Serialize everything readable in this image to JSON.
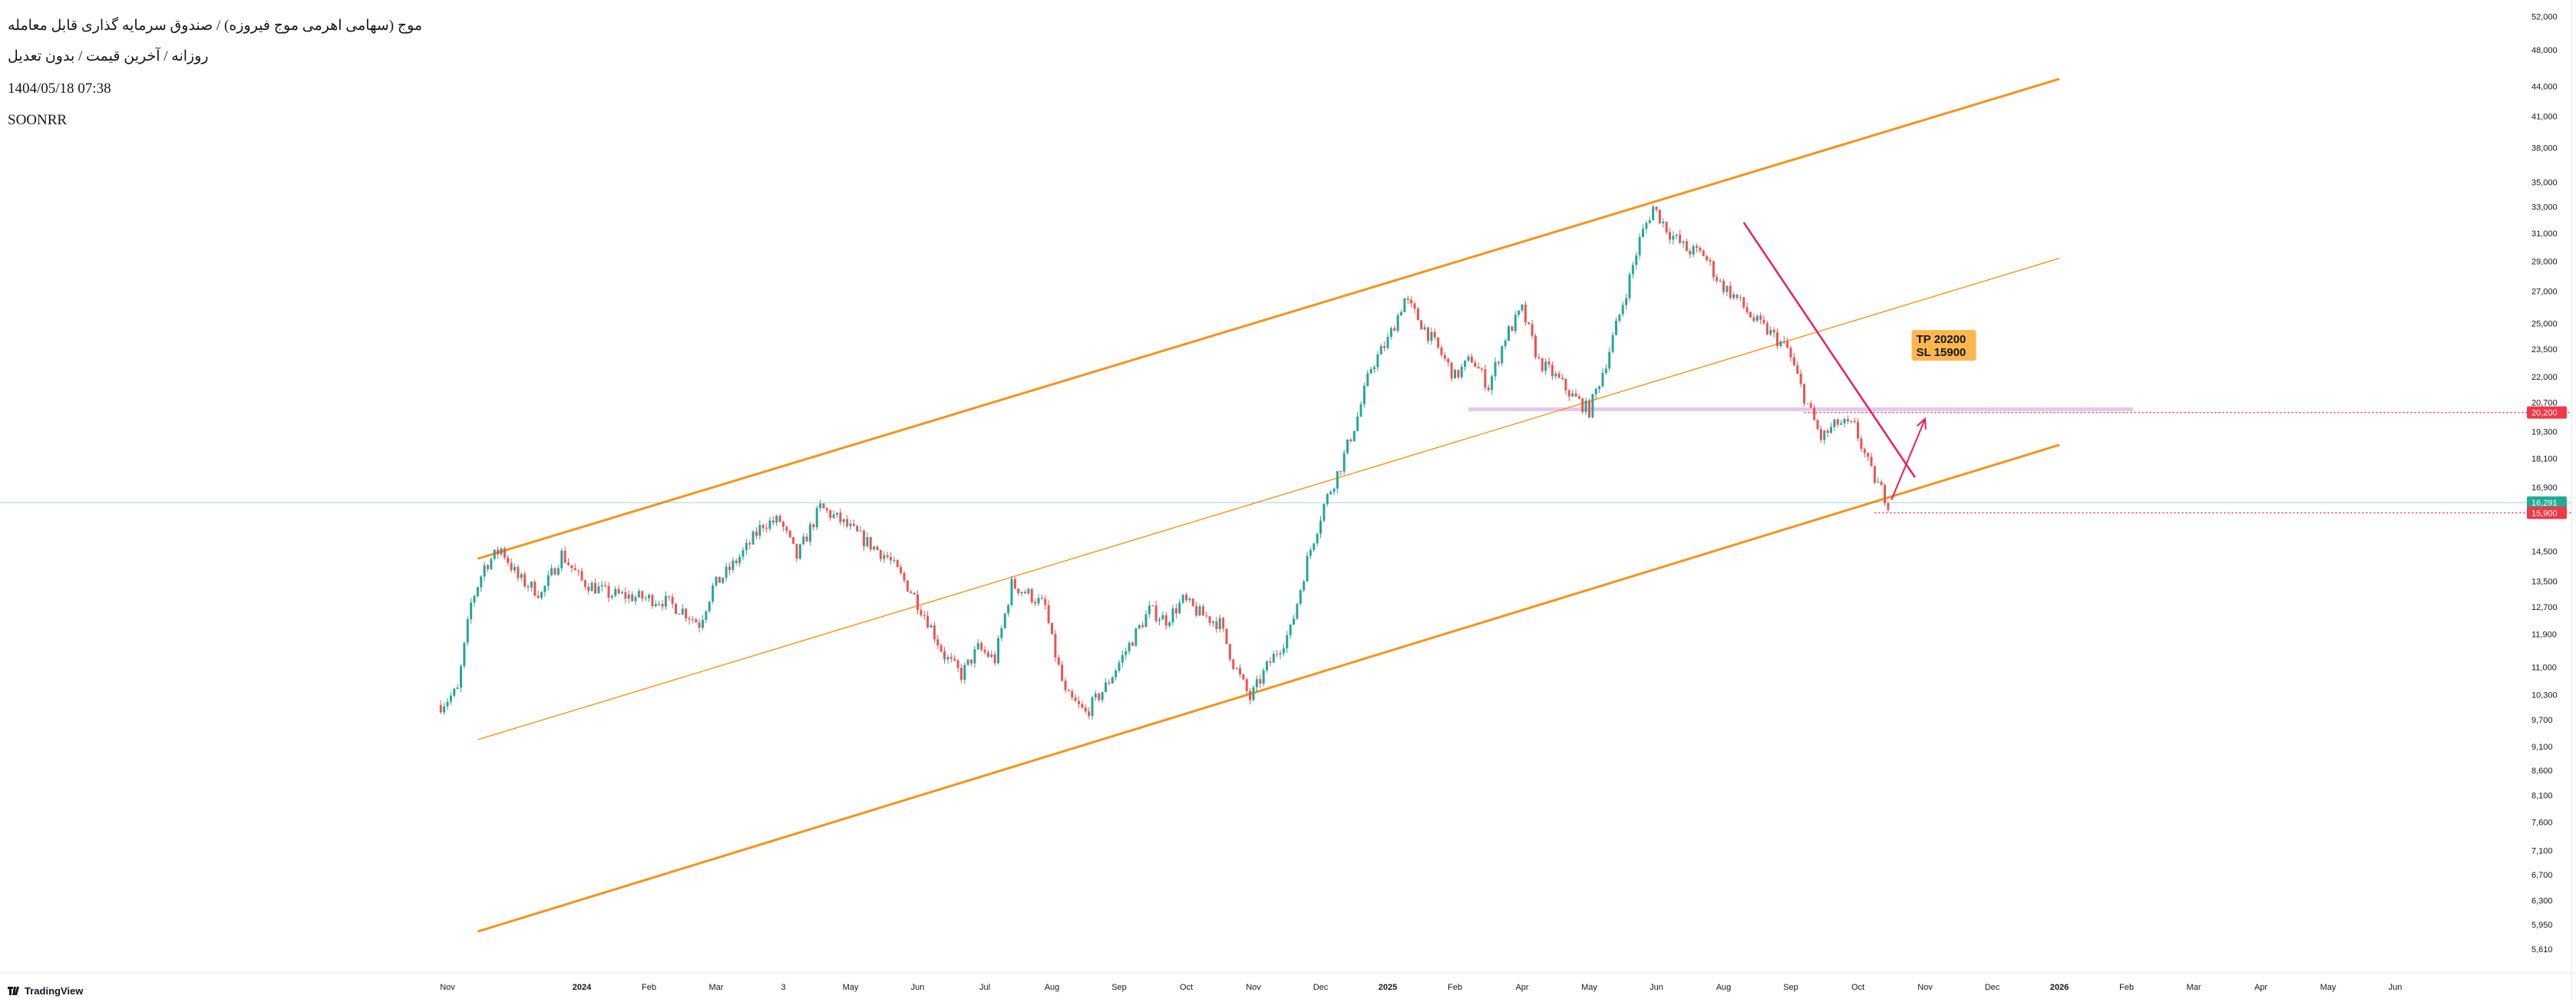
{
  "header": {
    "title": "موج (سهامی اهرمی موج فیروزه) / صندوق سرمایه گذاری قابل معامله",
    "subtitle": "روزانه / آخرین قیمت / بدون تعدیل",
    "timestamp": "1404/05/18 07:38",
    "symbol": "SOONRR"
  },
  "brand": {
    "name": "TradingView"
  },
  "colors": {
    "up": "#26a69a",
    "down": "#ef5350",
    "channel": "#f7931a",
    "trend": "#e91e63",
    "support": "#e1bee7",
    "target": "#f23645",
    "current": "#22ab94",
    "note_bg": "#ffb74d"
  },
  "chart_data": {
    "type": "candlestick",
    "yscale": "log",
    "ylim": [
      5300,
      53500
    ],
    "y_ticks": [
      {
        "v": 5610,
        "label": "5,610"
      },
      {
        "v": 5950,
        "label": "5,950"
      },
      {
        "v": 6300,
        "label": "6,300"
      },
      {
        "v": 6700,
        "label": "6,700"
      },
      {
        "v": 7100,
        "label": "7,100"
      },
      {
        "v": 7600,
        "label": "7,600"
      },
      {
        "v": 8100,
        "label": "8,100"
      },
      {
        "v": 8600,
        "label": "8,600"
      },
      {
        "v": 9100,
        "label": "9,100"
      },
      {
        "v": 9700,
        "label": "9,700"
      },
      {
        "v": 10300,
        "label": "10,300"
      },
      {
        "v": 11000,
        "label": "11,000"
      },
      {
        "v": 11900,
        "label": "11,900"
      },
      {
        "v": 12700,
        "label": "12,700"
      },
      {
        "v": 13500,
        "label": "13,500"
      },
      {
        "v": 14500,
        "label": "14,500"
      },
      {
        "v": 16900,
        "label": "16,900"
      },
      {
        "v": 18100,
        "label": "18,100"
      },
      {
        "v": 19300,
        "label": "19,300"
      },
      {
        "v": 20700,
        "label": "20,700"
      },
      {
        "v": 22000,
        "label": "22,000"
      },
      {
        "v": 23500,
        "label": "23,500"
      },
      {
        "v": 25000,
        "label": "25,000"
      },
      {
        "v": 27000,
        "label": "27,000"
      },
      {
        "v": 29000,
        "label": "29,000"
      },
      {
        "v": 31000,
        "label": "31,000"
      },
      {
        "v": 33000,
        "label": "33,000"
      },
      {
        "v": 35000,
        "label": "35,000"
      },
      {
        "v": 38000,
        "label": "38,000"
      },
      {
        "v": 41000,
        "label": "41,000"
      },
      {
        "v": 44000,
        "label": "44,000"
      },
      {
        "v": 48000,
        "label": "48,000"
      },
      {
        "v": 52000,
        "label": "52,000"
      }
    ],
    "x_ticks": [
      {
        "m": 0,
        "label": "Nov",
        "bold": false
      },
      {
        "m": 2,
        "label": "2024",
        "bold": true
      },
      {
        "m": 3,
        "label": "Feb",
        "bold": false
      },
      {
        "m": 4,
        "label": "Mar",
        "bold": false
      },
      {
        "m": 5,
        "label": "3",
        "bold": false
      },
      {
        "m": 6,
        "label": "May",
        "bold": false
      },
      {
        "m": 7,
        "label": "Jun",
        "bold": false
      },
      {
        "m": 8,
        "label": "Jul",
        "bold": false
      },
      {
        "m": 9,
        "label": "Aug",
        "bold": false
      },
      {
        "m": 10,
        "label": "Sep",
        "bold": false
      },
      {
        "m": 11,
        "label": "Oct",
        "bold": false
      },
      {
        "m": 12,
        "label": "Nov",
        "bold": false
      },
      {
        "m": 13,
        "label": "Dec",
        "bold": false
      },
      {
        "m": 14,
        "label": "2025",
        "bold": true
      },
      {
        "m": 15,
        "label": "Feb",
        "bold": false
      },
      {
        "m": 16,
        "label": "Apr",
        "bold": false
      },
      {
        "m": 17,
        "label": "May",
        "bold": false
      },
      {
        "m": 18,
        "label": "Jun",
        "bold": false
      },
      {
        "m": 19,
        "label": "Aug",
        "bold": false
      },
      {
        "m": 20,
        "label": "Sep",
        "bold": false
      },
      {
        "m": 21,
        "label": "Oct",
        "bold": false
      },
      {
        "m": 22,
        "label": "Nov",
        "bold": false
      },
      {
        "m": 23,
        "label": "Dec",
        "bold": false
      },
      {
        "m": 24,
        "label": "2026",
        "bold": true
      },
      {
        "m": 25,
        "label": "Feb",
        "bold": false
      },
      {
        "m": 26,
        "label": "Mar",
        "bold": false
      },
      {
        "m": 27,
        "label": "Apr",
        "bold": false
      },
      {
        "m": 28,
        "label": "May",
        "bold": false
      },
      {
        "m": 29,
        "label": "Jun",
        "bold": false
      }
    ],
    "price_path": [
      [
        -0.1,
        10050
      ],
      [
        0.15,
        10400
      ],
      [
        0.35,
        12800
      ],
      [
        0.55,
        14000
      ],
      [
        0.8,
        14600
      ],
      [
        1.05,
        13600
      ],
      [
        1.4,
        13100
      ],
      [
        1.7,
        14400
      ],
      [
        2.0,
        13500
      ],
      [
        2.4,
        13100
      ],
      [
        2.8,
        13000
      ],
      [
        3.2,
        12900
      ],
      [
        3.5,
        12600
      ],
      [
        3.75,
        12200
      ],
      [
        3.95,
        13300
      ],
      [
        4.2,
        13900
      ],
      [
        4.45,
        14600
      ],
      [
        4.7,
        15500
      ],
      [
        4.95,
        15600
      ],
      [
        5.2,
        14300
      ],
      [
        5.55,
        16100
      ],
      [
        5.85,
        15600
      ],
      [
        6.2,
        14900
      ],
      [
        6.55,
        14300
      ],
      [
        6.9,
        13200
      ],
      [
        7.15,
        12300
      ],
      [
        7.4,
        11300
      ],
      [
        7.65,
        10800
      ],
      [
        7.9,
        11500
      ],
      [
        8.15,
        11200
      ],
      [
        8.4,
        13400
      ],
      [
        8.65,
        13100
      ],
      [
        8.9,
        12700
      ],
      [
        9.0,
        11700
      ],
      [
        9.2,
        10300
      ],
      [
        9.5,
        9850
      ],
      [
        9.8,
        10500
      ],
      [
        10.15,
        11600
      ],
      [
        10.45,
        12600
      ],
      [
        10.7,
        12300
      ],
      [
        10.95,
        12900
      ],
      [
        11.2,
        12500
      ],
      [
        11.5,
        12200
      ],
      [
        11.7,
        11100
      ],
      [
        11.95,
        10200
      ],
      [
        12.2,
        11000
      ],
      [
        12.55,
        12000
      ],
      [
        12.8,
        14200
      ],
      [
        13.05,
        16200
      ],
      [
        13.3,
        17800
      ],
      [
        13.55,
        20000
      ],
      [
        13.75,
        22500
      ],
      [
        14.0,
        24000
      ],
      [
        14.25,
        26500
      ],
      [
        14.5,
        25000
      ],
      [
        14.75,
        23500
      ],
      [
        15.0,
        22000
      ],
      [
        15.25,
        23000
      ],
      [
        15.5,
        21500
      ],
      [
        15.75,
        24200
      ],
      [
        16.0,
        25800
      ],
      [
        16.25,
        22800
      ],
      [
        16.5,
        22000
      ],
      [
        16.75,
        21000
      ],
      [
        17.0,
        20300
      ],
      [
        17.25,
        22800
      ],
      [
        17.55,
        27000
      ],
      [
        17.75,
        30500
      ],
      [
        17.95,
        33000
      ],
      [
        18.2,
        31000
      ],
      [
        18.45,
        29800
      ],
      [
        18.7,
        29500
      ],
      [
        18.95,
        27500
      ],
      [
        19.2,
        26500
      ],
      [
        19.45,
        25200
      ],
      [
        19.7,
        24400
      ],
      [
        19.95,
        23500
      ],
      [
        20.2,
        21000
      ],
      [
        20.45,
        19000
      ],
      [
        20.7,
        19700
      ],
      [
        20.95,
        19500
      ],
      [
        21.2,
        17500
      ],
      [
        21.45,
        16300
      ]
    ],
    "channel": {
      "upper": {
        "x1": 0.45,
        "y1": 14250,
        "x2": 24.0,
        "y2": 44800
      },
      "middle": {
        "x1": 0.45,
        "y1": 9250,
        "x2": 24.0,
        "y2": 29200
      },
      "lower": {
        "x1": 0.45,
        "y1": 5850,
        "x2": 24.0,
        "y2": 18700
      }
    },
    "trendline": {
      "x1": 19.3,
      "y1": 31800,
      "x2": 21.85,
      "y2": 17300
    },
    "support_zone": {
      "x1": 15.2,
      "x2": 25.1,
      "y": 20300
    },
    "projection": {
      "x1": 21.5,
      "y1": 16400,
      "x2": 22.0,
      "y2": 19900
    },
    "current_price": {
      "value": 16291,
      "label": "16,291"
    },
    "target_line": {
      "value": 20200,
      "label": "20,200"
    },
    "stop_line": {
      "value": 15900,
      "label": "15,900"
    },
    "annotation": {
      "lines": [
        "TP 20200",
        "SL 15900"
      ]
    }
  }
}
